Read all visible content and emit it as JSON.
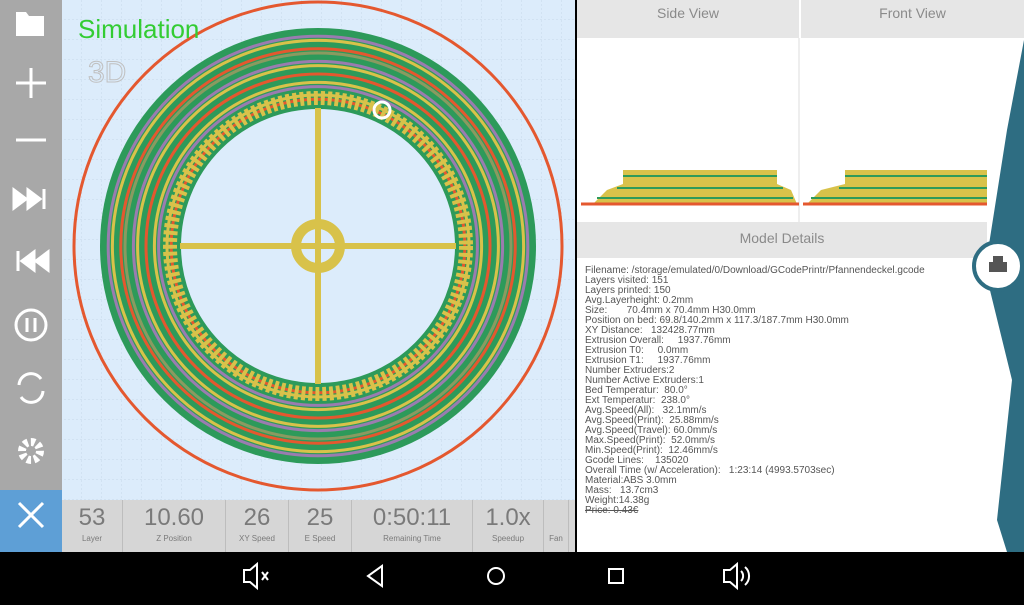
{
  "app": {
    "mode_label": "Simulation",
    "view_badge": "3D"
  },
  "stats": [
    {
      "value": "53",
      "label": "Layer"
    },
    {
      "value": "10.60",
      "label": "Z Position"
    },
    {
      "value": "26",
      "label": "XY Speed"
    },
    {
      "value": "25",
      "label": "E Speed"
    },
    {
      "value": "0:50:11",
      "label": "Remaining Time"
    },
    {
      "value": "1.0x",
      "label": "Speedup"
    },
    {
      "label": "Fan"
    }
  ],
  "tabs": [
    "Side View",
    "Front View"
  ],
  "model_details": {
    "title": "Model Details",
    "lines": [
      "Filename: /storage/emulated/0/Download/GCodePrintr/Pfannendeckel.gcode",
      "Layers visited: 151",
      "Layers printed: 150",
      "Avg.Layerheight: 0.2mm",
      "Size:       70.4mm x 70.4mm H30.0mm",
      "Position on bed: 69.8/140.2mm x 117.3/187.7mm H30.0mm",
      "XY Distance:   132428.77mm",
      "Extrusion Overall:     1937.76mm",
      "Extrusion T0:     0.0mm",
      "Extrusion T1:     1937.76mm",
      "Number Extruders:2",
      "Number Active Extruders:1",
      "Bed Temperatur:  80.0°",
      "Ext Temperatur:  238.0°",
      "Avg.Speed(All):   32.1mm/s",
      "Avg.Speed(Print):  25.88mm/s",
      "Avg.Speed(Travel): 60.0mm/s",
      "Max.Speed(Print):  52.0mm/s",
      "Min.Speed(Print):  12.46mm/s",
      "Gcode Lines:    135020",
      "Overall Time (w/ Acceleration):   1:23:14 (4993.5703sec)",
      "Material:ABS 3.0mm",
      "Mass:   13.7cm3",
      "Weight:14.38g"
    ],
    "price": "Price: 0.43€"
  }
}
